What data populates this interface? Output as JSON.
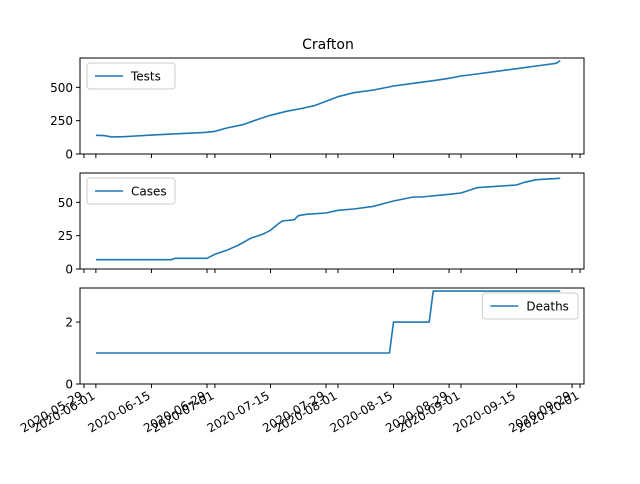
{
  "title": "Crafton",
  "colors": {
    "series": "#1f77b4",
    "axis": "#000000",
    "background": "#ffffff"
  },
  "x_tick_labels": [
    "2020-05-29",
    "2020-06-01",
    "2020-06-15",
    "2020-06-29",
    "2020-07-01",
    "2020-07-15",
    "2020-07-29",
    "2020-08-01",
    "2020-08-15",
    "2020-08-29",
    "2020-09-01",
    "2020-09-15",
    "2020-09-29",
    "2020-10-01"
  ],
  "chart_data": [
    {
      "type": "line",
      "title": "Crafton",
      "legend_position": "upper-left",
      "grid": false,
      "ylim": [
        0,
        720
      ],
      "yticks": [
        "0",
        "250",
        "500"
      ],
      "series": [
        {
          "name": "Tests",
          "x": [
            "2020-06-01",
            "2020-06-03",
            "2020-06-05",
            "2020-06-08",
            "2020-06-15",
            "2020-06-22",
            "2020-06-29",
            "2020-07-01",
            "2020-07-04",
            "2020-07-08",
            "2020-07-12",
            "2020-07-15",
            "2020-07-19",
            "2020-07-23",
            "2020-07-26",
            "2020-07-28",
            "2020-08-01",
            "2020-08-05",
            "2020-08-10",
            "2020-08-15",
            "2020-08-20",
            "2020-08-25",
            "2020-08-29",
            "2020-09-01",
            "2020-09-05",
            "2020-09-10",
            "2020-09-15",
            "2020-09-20",
            "2020-09-25",
            "2020-09-26"
          ],
          "values": [
            140,
            138,
            128,
            130,
            142,
            152,
            163,
            170,
            195,
            220,
            262,
            290,
            320,
            342,
            362,
            385,
            430,
            460,
            480,
            510,
            530,
            550,
            568,
            585,
            600,
            620,
            640,
            660,
            680,
            700
          ]
        }
      ]
    },
    {
      "type": "line",
      "legend_position": "upper-left",
      "grid": false,
      "ylim": [
        0,
        72
      ],
      "yticks": [
        "0",
        "25",
        "50"
      ],
      "series": [
        {
          "name": "Cases",
          "x": [
            "2020-06-01",
            "2020-06-20",
            "2020-06-21",
            "2020-06-29",
            "2020-07-01",
            "2020-07-04",
            "2020-07-07",
            "2020-07-10",
            "2020-07-13",
            "2020-07-15",
            "2020-07-17",
            "2020-07-18",
            "2020-07-21",
            "2020-07-22",
            "2020-07-24",
            "2020-07-29",
            "2020-08-01",
            "2020-08-05",
            "2020-08-10",
            "2020-08-15",
            "2020-08-20",
            "2020-08-22",
            "2020-08-29",
            "2020-09-01",
            "2020-09-05",
            "2020-09-10",
            "2020-09-15",
            "2020-09-17",
            "2020-09-20",
            "2020-09-26"
          ],
          "values": [
            7,
            7,
            8,
            8,
            11,
            14,
            18,
            23,
            26,
            29,
            34,
            36,
            37,
            40,
            41,
            42,
            44,
            45,
            47,
            51,
            54,
            54,
            56,
            57,
            61,
            62,
            63,
            65,
            67,
            68
          ]
        }
      ]
    },
    {
      "type": "line",
      "legend_position": "upper-right",
      "grid": false,
      "ylim": [
        0,
        3.1
      ],
      "yticks": [
        "0",
        "2"
      ],
      "series": [
        {
          "name": "Deaths",
          "x": [
            "2020-06-01",
            "2020-08-14",
            "2020-08-15",
            "2020-08-24",
            "2020-08-25",
            "2020-09-26"
          ],
          "values": [
            1,
            1,
            2,
            2,
            3,
            3
          ]
        }
      ]
    }
  ]
}
